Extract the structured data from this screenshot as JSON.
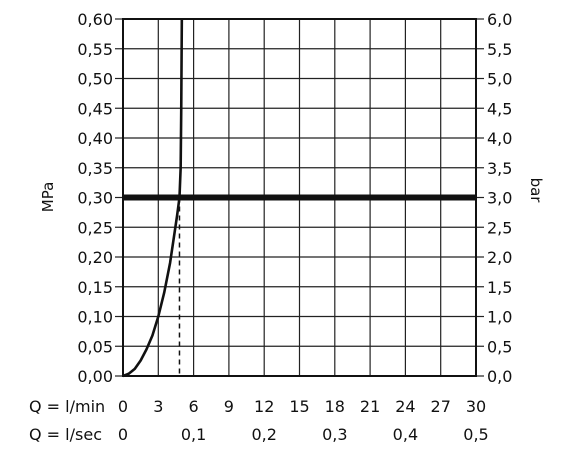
{
  "chart_data": {
    "type": "line",
    "x_axes": [
      {
        "label": "Q = l/min",
        "ticks": [
          "0",
          "3",
          "6",
          "9",
          "12",
          "15",
          "18",
          "21",
          "24",
          "27",
          "30"
        ],
        "range": [
          0,
          30
        ]
      },
      {
        "label": "Q = l/sec",
        "ticks": [
          "0",
          "0,1",
          "0,2",
          "0,3",
          "0,4",
          "0,5"
        ],
        "tick_positions_lmin": [
          0,
          6,
          12,
          18,
          24,
          30
        ]
      }
    ],
    "y_left": {
      "label": "MPa",
      "range": [
        0,
        0.6
      ],
      "ticks": [
        "0,00",
        "0,05",
        "0,10",
        "0,15",
        "0,20",
        "0,25",
        "0,30",
        "0,35",
        "0,40",
        "0,45",
        "0,50",
        "0,55",
        "0,60"
      ]
    },
    "y_right": {
      "label": "bar",
      "range": [
        0,
        6.0
      ],
      "ticks": [
        "0,0",
        "0,5",
        "1,0",
        "1,5",
        "2,0",
        "2,5",
        "3,0",
        "3,5",
        "4,0",
        "4,5",
        "5,0",
        "5,5",
        "6,0"
      ]
    },
    "grid": true,
    "series": [
      {
        "values_xy": [
          [
            0,
            0
          ],
          [
            0.5,
            0.004
          ],
          [
            1,
            0.012
          ],
          [
            1.5,
            0.026
          ],
          [
            2,
            0.045
          ],
          [
            2.5,
            0.068
          ],
          [
            3,
            0.1
          ],
          [
            3.5,
            0.14
          ],
          [
            4,
            0.19
          ],
          [
            4.3,
            0.23
          ],
          [
            4.6,
            0.27
          ],
          [
            4.8,
            0.3
          ],
          [
            4.9,
            0.35
          ],
          [
            4.95,
            0.45
          ],
          [
            5.0,
            0.6
          ]
        ]
      }
    ],
    "reference_line_y": 0.3,
    "dashed_marker_x": 4.8
  }
}
